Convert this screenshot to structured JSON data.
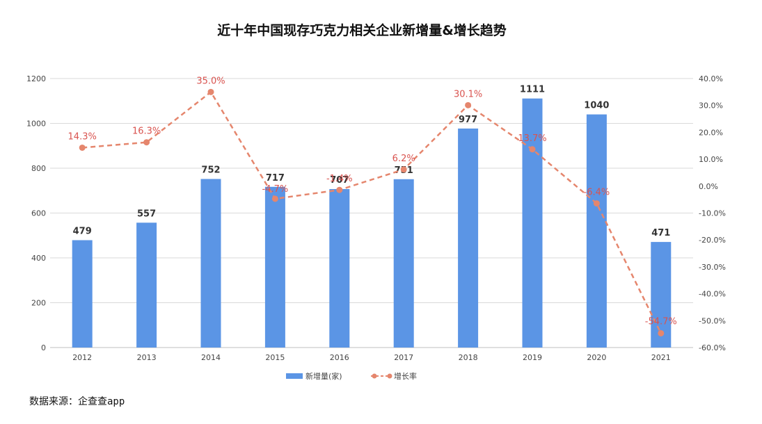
{
  "source_text": "数据来源：企查查app",
  "chart_data": {
    "type": "bar",
    "title": "近十年中国现存巧克力相关企业新增量&增长趋势",
    "categories": [
      "2012",
      "2013",
      "2014",
      "2015",
      "2016",
      "2017",
      "2018",
      "2019",
      "2020",
      "2021"
    ],
    "series": [
      {
        "name": "新增量(家)",
        "type": "bar",
        "axis": "left",
        "color": "#5b95e5",
        "values": [
          479,
          557,
          752,
          717,
          707,
          751,
          977,
          1111,
          1040,
          471
        ],
        "labels": [
          "479",
          "557",
          "752",
          "717",
          "707",
          "751",
          "977",
          "1111",
          "1040",
          "471"
        ]
      },
      {
        "name": "增长率",
        "type": "line",
        "axis": "right",
        "color": "#e5866d",
        "dashed": true,
        "values": [
          14.3,
          16.3,
          35.0,
          -4.7,
          -1.4,
          6.2,
          30.1,
          13.7,
          -6.4,
          -54.7
        ],
        "labels": [
          "14.3%",
          "16.3%",
          "35.0%",
          "-4.7%",
          "-1.4%",
          "6.2%",
          "30.1%",
          "13.7%",
          "-6.4%",
          "-54.7%"
        ]
      }
    ],
    "y_left": {
      "range": [
        0,
        1200
      ],
      "ticks": [
        0,
        200,
        400,
        600,
        800,
        1000,
        1200
      ],
      "tick_labels": [
        "0",
        "200",
        "400",
        "600",
        "800",
        "1000",
        "1200"
      ]
    },
    "y_right": {
      "range": [
        -60,
        40
      ],
      "ticks": [
        -60,
        -50,
        -40,
        -30,
        -20,
        -10,
        0,
        10,
        20,
        30,
        40
      ],
      "tick_labels": [
        "-60.0%",
        "-50.0%",
        "-40.0%",
        "-30.0%",
        "-20.0%",
        "-10.0%",
        "0.0%",
        "10.0%",
        "20.0%",
        "30.0%",
        "40.0%"
      ]
    },
    "grid": true,
    "legend_position": "bottom",
    "rate_label_color": "#d9534f"
  }
}
